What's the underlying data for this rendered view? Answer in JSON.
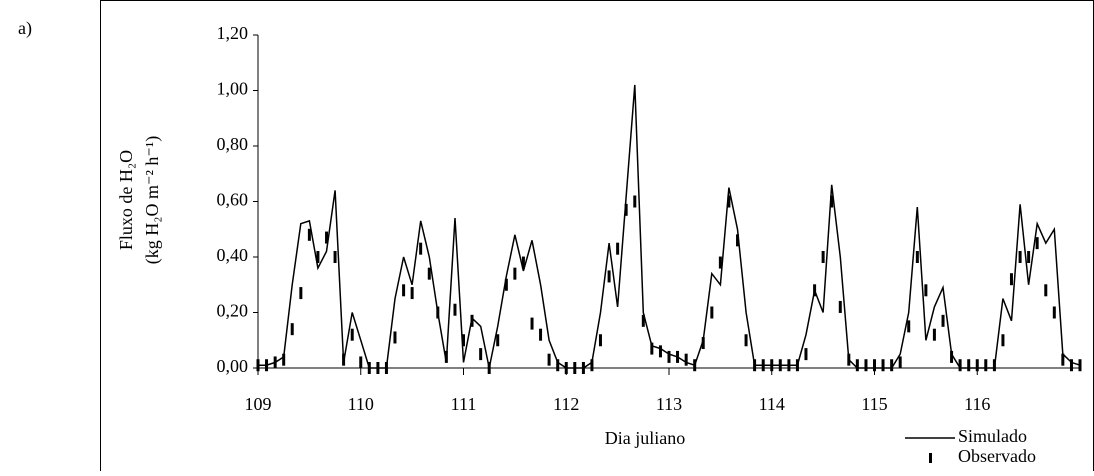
{
  "chart_data": {
    "type": "line",
    "panel_label": "a)",
    "xlabel": "Dia juliano",
    "ylabel": [
      "Fluxo de H₂O",
      "(kg H₂O m⁻² h⁻¹)"
    ],
    "x": [
      109,
      109.083,
      109.167,
      109.25,
      109.333,
      109.417,
      109.5,
      109.583,
      109.667,
      109.75,
      109.833,
      109.917,
      110,
      110.083,
      110.167,
      110.25,
      110.333,
      110.417,
      110.5,
      110.583,
      110.667,
      110.75,
      110.833,
      110.917,
      111,
      111.083,
      111.167,
      111.25,
      111.333,
      111.417,
      111.5,
      111.583,
      111.667,
      111.75,
      111.833,
      111.917,
      112,
      112.083,
      112.167,
      112.25,
      112.333,
      112.417,
      112.5,
      112.583,
      112.667,
      112.75,
      112.833,
      112.917,
      113,
      113.083,
      113.167,
      113.25,
      113.333,
      113.417,
      113.5,
      113.583,
      113.667,
      113.75,
      113.833,
      113.917,
      114,
      114.083,
      114.167,
      114.25,
      114.333,
      114.417,
      114.5,
      114.583,
      114.667,
      114.75,
      114.833,
      114.917,
      115,
      115.083,
      115.167,
      115.25,
      115.333,
      115.417,
      115.5,
      115.583,
      115.667,
      115.75,
      115.833,
      115.917,
      116,
      116.083,
      116.167,
      116.25,
      116.333,
      116.417,
      116.5,
      116.583,
      116.667,
      116.75,
      116.833,
      116.917,
      117
    ],
    "series": [
      {
        "name": "Simulado",
        "color": "#000000",
        "style": "line",
        "values": [
          0.01,
          0.01,
          0.02,
          0.04,
          0.3,
          0.52,
          0.53,
          0.36,
          0.42,
          0.64,
          0.02,
          0.2,
          0.1,
          0.0,
          0.0,
          0.0,
          0.25,
          0.4,
          0.3,
          0.53,
          0.4,
          0.2,
          0.02,
          0.54,
          0.02,
          0.18,
          0.15,
          0.0,
          0.15,
          0.33,
          0.48,
          0.35,
          0.46,
          0.3,
          0.1,
          0.02,
          0.0,
          0.0,
          0.0,
          0.02,
          0.2,
          0.45,
          0.22,
          0.62,
          1.02,
          0.2,
          0.08,
          0.07,
          0.05,
          0.04,
          0.02,
          0.01,
          0.1,
          0.34,
          0.3,
          0.65,
          0.5,
          0.2,
          0.01,
          0.01,
          0.01,
          0.01,
          0.01,
          0.01,
          0.12,
          0.28,
          0.2,
          0.66,
          0.4,
          0.03,
          0.0,
          0.0,
          0.0,
          0.0,
          0.0,
          0.05,
          0.2,
          0.58,
          0.1,
          0.22,
          0.29,
          0.05,
          0.0,
          0.0,
          0.0,
          0.0,
          0.0,
          0.25,
          0.17,
          0.59,
          0.3,
          0.52,
          0.45,
          0.5,
          0.05,
          0.02,
          0.01
        ]
      },
      {
        "name": "Observado",
        "color": "#000000",
        "style": "dash",
        "values": [
          0.01,
          0.01,
          0.02,
          0.03,
          0.14,
          0.27,
          0.48,
          0.4,
          0.47,
          0.4,
          0.03,
          0.12,
          0.02,
          0.0,
          0.0,
          0.0,
          0.11,
          0.28,
          0.27,
          0.43,
          0.34,
          0.2,
          0.04,
          0.21,
          0.1,
          0.17,
          0.05,
          0.0,
          0.1,
          0.3,
          0.34,
          0.38,
          0.16,
          0.12,
          0.03,
          0.01,
          0.0,
          0.0,
          0.0,
          0.01,
          0.1,
          0.33,
          0.43,
          0.57,
          0.6,
          0.17,
          0.07,
          0.06,
          0.04,
          0.04,
          0.03,
          0.01,
          0.09,
          0.2,
          0.38,
          0.6,
          0.46,
          0.1,
          0.01,
          0.01,
          0.01,
          0.01,
          0.01,
          0.01,
          0.05,
          0.28,
          0.4,
          0.6,
          0.22,
          0.03,
          0.01,
          0.01,
          0.01,
          0.01,
          0.01,
          0.02,
          0.15,
          0.4,
          0.28,
          0.12,
          0.17,
          0.04,
          0.01,
          0.01,
          0.01,
          0.01,
          0.01,
          0.1,
          0.32,
          0.4,
          0.4,
          0.45,
          0.28,
          0.2,
          0.03,
          0.01,
          0.01
        ]
      }
    ],
    "xlim": [
      109,
      117
    ],
    "xticks": [
      109,
      110,
      111,
      112,
      113,
      114,
      115,
      116
    ],
    "ylim": [
      0,
      1.2
    ],
    "yticks": [
      {
        "value": 0,
        "label": "0,00"
      },
      {
        "value": 0.2,
        "label": "0,20"
      },
      {
        "value": 0.4,
        "label": "0,40"
      },
      {
        "value": 0.6,
        "label": "0,60"
      },
      {
        "value": 0.8,
        "label": "0,80"
      },
      {
        "value": 1.0,
        "label": "1,00"
      },
      {
        "value": 1.2,
        "label": "1,20"
      }
    ],
    "grid": false,
    "legend": "lower right"
  }
}
